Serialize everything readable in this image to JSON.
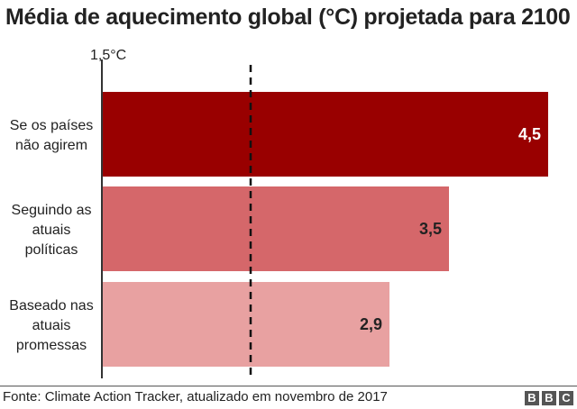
{
  "chart_data": {
    "type": "bar",
    "orientation": "horizontal",
    "title": "Média de aquecimento global (°C) projetada para 2100",
    "categories": [
      [
        "Se os países",
        "não agirem"
      ],
      [
        "Seguindo as",
        "atuais",
        "políticas"
      ],
      [
        "Baseado nas",
        "atuais",
        "promessas"
      ]
    ],
    "values": [
      4.5,
      3.5,
      2.9
    ],
    "value_labels": [
      "4,5",
      "3,5",
      "2,9"
    ],
    "colors": [
      "#990000",
      "#d5676a",
      "#e8a1a1"
    ],
    "value_label_colors": [
      "#ffffff",
      "#222222",
      "#222222"
    ],
    "reference_line": {
      "value": 1.5,
      "label": "1,5°C",
      "style": "dashed"
    },
    "xlim": [
      0,
      4.6
    ],
    "grid": false
  },
  "footer": {
    "source": "Fonte: Climate Action Tracker, atualizado em novembro de 2017",
    "logo": [
      "B",
      "B",
      "C"
    ]
  }
}
